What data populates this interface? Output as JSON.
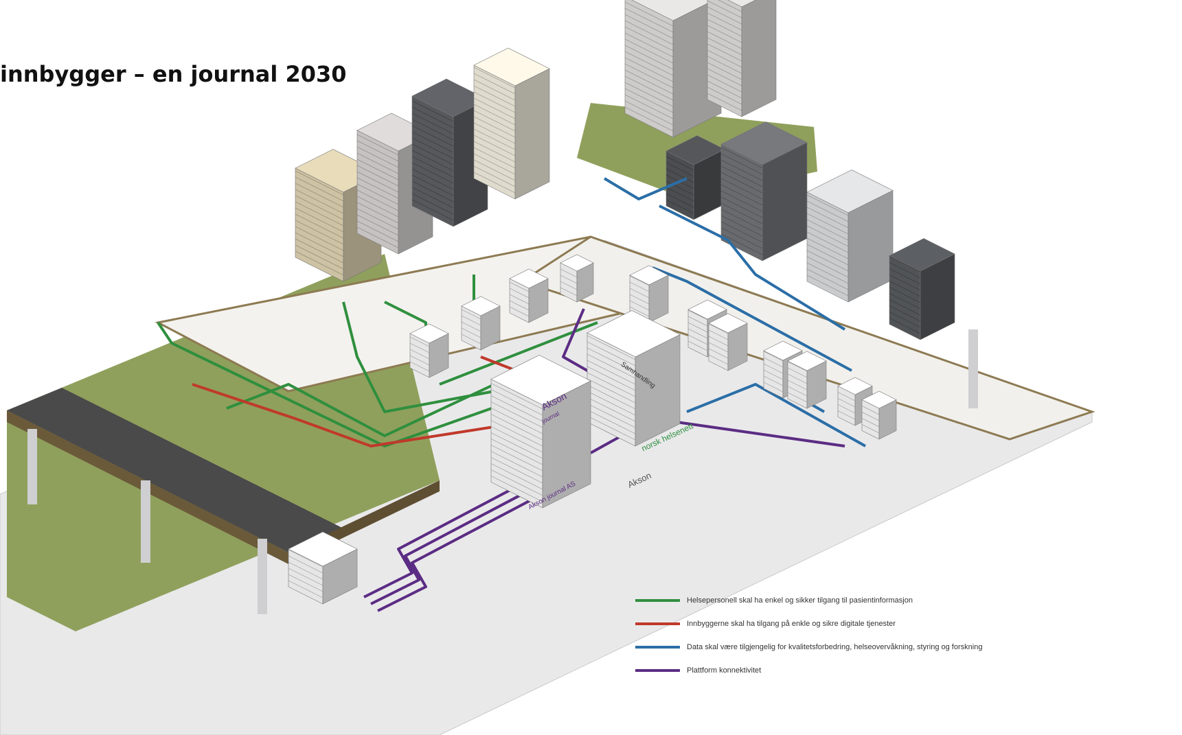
{
  "header": {
    "title": "innbygger – en journal 2030"
  },
  "labels": {
    "akson_box": "Akson",
    "journal_box": "journal",
    "samhandling": "Samhandling",
    "norsk_helsenett": "norsk helsenett",
    "akson_journal_as": "Akson journal AS",
    "akson_area": "Akson"
  },
  "legend": [
    {
      "text": "Helsepersonell skal ha enkel og sikker tilgang til pasientinformasjon",
      "color": "#2f8f3e"
    },
    {
      "text": "Innbyggerne skal ha tilgang på enkle og sikre digitale tjenester",
      "color": "#c0392b"
    },
    {
      "text": "Data skal være tilgjengelig for kvalitetsforbedring, helseovervåkning, styring og forskning",
      "color": "#2b6ea6"
    },
    {
      "text": "Plattform konnektivitet",
      "color": "#5b2c83"
    }
  ]
}
